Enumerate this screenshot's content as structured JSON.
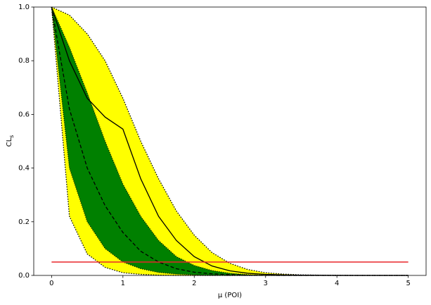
{
  "chart_data": {
    "type": "brazil",
    "xlabel": "μ (POI)",
    "ylabel": {
      "main": "CL",
      "sub": "s"
    },
    "x": [
      0,
      0.25,
      0.5,
      0.75,
      1,
      1.25,
      1.5,
      1.75,
      2,
      2.25,
      2.5,
      2.75,
      3,
      3.25,
      3.5,
      3.75,
      4,
      4.25,
      4.5,
      4.75,
      5
    ],
    "observed": {
      "color": "#000000",
      "values": [
        1,
        0.8,
        0.66,
        0.59,
        0.545,
        0.36,
        0.22,
        0.13,
        0.07,
        0.035,
        0.017,
        0.008,
        0.004,
        0.002,
        0.001,
        0.0005,
        0,
        0,
        0,
        0,
        0
      ]
    },
    "expected": {
      "color": "#000000",
      "values": [
        1,
        0.62,
        0.4,
        0.26,
        0.16,
        0.09,
        0.05,
        0.025,
        0.012,
        0.006,
        0.003,
        0.001,
        0.0005,
        0,
        0,
        0,
        0,
        0,
        0,
        0,
        0
      ]
    },
    "band_2sigma": {
      "color": "#ffff00",
      "upper": [
        1,
        0.97,
        0.9,
        0.8,
        0.66,
        0.5,
        0.36,
        0.24,
        0.15,
        0.085,
        0.045,
        0.022,
        0.01,
        0.005,
        0.002,
        0.001,
        0.0005,
        0,
        0,
        0,
        0
      ],
      "lower": [
        1,
        0.22,
        0.08,
        0.03,
        0.01,
        0.004,
        0.001,
        0,
        0,
        0,
        0,
        0,
        0,
        0,
        0,
        0,
        0,
        0,
        0,
        0,
        0
      ]
    },
    "band_1sigma": {
      "color": "#008000",
      "upper": [
        1,
        0.85,
        0.68,
        0.5,
        0.34,
        0.22,
        0.13,
        0.07,
        0.037,
        0.018,
        0.008,
        0.003,
        0.001,
        0.0005,
        0,
        0,
        0,
        0,
        0,
        0,
        0
      ],
      "lower": [
        1,
        0.4,
        0.2,
        0.1,
        0.05,
        0.025,
        0.011,
        0.005,
        0.002,
        0.001,
        0,
        0,
        0,
        0,
        0,
        0,
        0,
        0,
        0,
        0,
        0
      ]
    },
    "threshold": {
      "value": 0.05,
      "color": "#e8272a"
    },
    "xlim": [
      -0.25,
      5.25
    ],
    "ylim": [
      0,
      1
    ],
    "xticks": [
      0,
      1,
      2,
      3,
      4,
      5
    ],
    "yticks": [
      {
        "value": 0,
        "label": "0.0"
      },
      {
        "value": 0.2,
        "label": "0.2"
      },
      {
        "value": 0.4,
        "label": "0.4"
      },
      {
        "value": 0.6,
        "label": "0.6"
      },
      {
        "value": 0.8,
        "label": "0.8"
      },
      {
        "value": 1,
        "label": "1.0"
      }
    ]
  }
}
